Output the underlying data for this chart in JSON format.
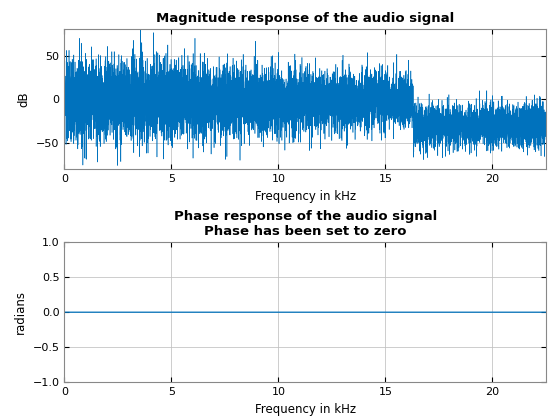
{
  "title1": "Magnitude response of the audio signal",
  "title2": "Phase response of the audio signal\nPhase has been set to zero",
  "xlabel": "Frequency in kHz",
  "ylabel1": "dB",
  "ylabel2": "radians",
  "xlim": [
    0,
    22.5
  ],
  "ylim1": [
    -80,
    80
  ],
  "ylim2": [
    -1,
    1
  ],
  "xticks": [
    0,
    5,
    10,
    15,
    20
  ],
  "yticks1": [
    -50,
    0,
    50
  ],
  "yticks2": [
    -1,
    -0.5,
    0,
    0.5,
    1
  ],
  "line_color": "#0072BD",
  "bg_color": "#FFFFFF",
  "grid_color": "#C0C0C0",
  "n_points": 10000,
  "seed": 7,
  "cutoff_khz": 16.3,
  "max_freq_khz": 22.5
}
